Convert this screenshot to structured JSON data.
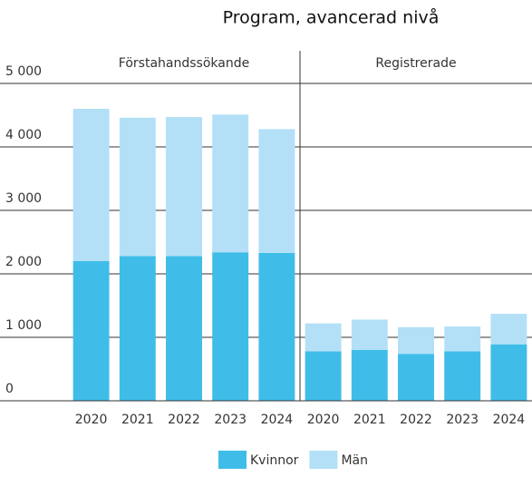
{
  "chart_data": {
    "type": "bar",
    "stacked": true,
    "title": "Program, avancerad nivå",
    "categories": [
      "2020",
      "2021",
      "2022",
      "2023",
      "2024"
    ],
    "ylim": [
      0,
      5000
    ],
    "yticks": [
      0,
      {
        "value": 1000,
        "label": "1 000"
      },
      {
        "value": 2000,
        "label": "2 000"
      },
      {
        "value": 3000,
        "label": "3 000"
      },
      {
        "value": 4000,
        "label": "4 000"
      },
      {
        "value": 5000,
        "label": "5 000"
      }
    ],
    "grid": true,
    "legend": "bottom",
    "facets": [
      {
        "title": "Förstahandssökande",
        "series": [
          {
            "name": "Kvinnor",
            "color": "#3fbde8",
            "values": [
              2200,
              2280,
              2280,
              2340,
              2330
            ]
          },
          {
            "name": "Män",
            "color": "#b3e0f6",
            "values": [
              2400,
              2180,
              2190,
              2170,
              1950
            ]
          }
        ]
      },
      {
        "title": "Registrerade",
        "series": [
          {
            "name": "Kvinnor",
            "color": "#3fbde8",
            "values": [
              780,
              800,
              740,
              780,
              890
            ]
          },
          {
            "name": "Män",
            "color": "#b3e0f6",
            "values": [
              440,
              480,
              420,
              390,
              480
            ]
          }
        ]
      }
    ]
  }
}
